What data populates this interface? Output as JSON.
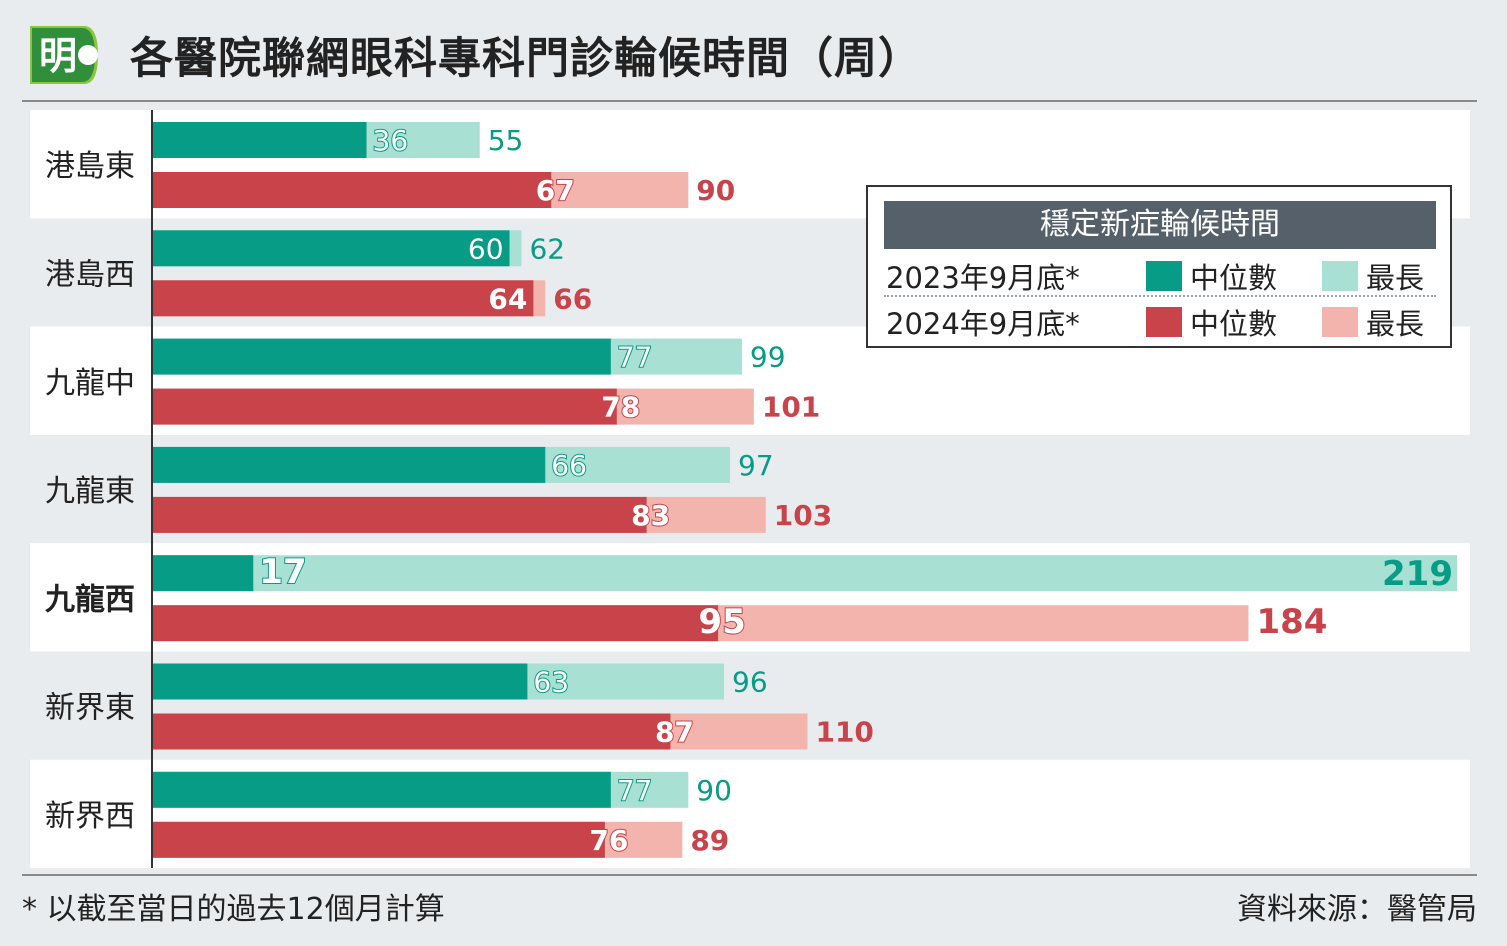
{
  "header": {
    "logo_char": "明",
    "title": "各醫院聯網眼科專科門診輪候時間（周）"
  },
  "legend": {
    "heading": "穩定新症輪候時間",
    "rows": [
      {
        "year": "2023年9月底*",
        "median_label": "中位數",
        "max_label": "最長"
      },
      {
        "year": "2024年9月底*",
        "median_label": "中位數",
        "max_label": "最長"
      }
    ]
  },
  "colors": {
    "median_2023": "#079c85",
    "max_2023": "#a8e0d3",
    "median_2024": "#c8434a",
    "max_2024": "#f2b4ad",
    "label_2023": "#079c85",
    "label_2024": "#c8434a"
  },
  "footer": {
    "footnote": "* 以截至當日的過去12個月計算",
    "source": "資料來源：醫管局"
  },
  "chart_data": {
    "type": "bar",
    "orientation": "horizontal",
    "title": "各醫院聯網眼科專科門診輪候時間（周）",
    "categories": [
      "港島東",
      "港島西",
      "九龍中",
      "九龍東",
      "九龍西",
      "新界東",
      "新界西"
    ],
    "highlight_category": "九龍西",
    "series": [
      {
        "name": "2023年9月底* 中位數",
        "values": [
          36,
          60,
          77,
          66,
          17,
          63,
          77
        ]
      },
      {
        "name": "2023年9月底* 最長",
        "values": [
          55,
          62,
          99,
          97,
          219,
          96,
          90
        ]
      },
      {
        "name": "2024年9月底* 中位數",
        "values": [
          67,
          64,
          78,
          83,
          95,
          87,
          76
        ]
      },
      {
        "name": "2024年9月底* 最長",
        "values": [
          90,
          66,
          101,
          103,
          184,
          110,
          89
        ]
      }
    ],
    "xlim": [
      0,
      219
    ],
    "grid": false,
    "legend_position": "top-right"
  }
}
